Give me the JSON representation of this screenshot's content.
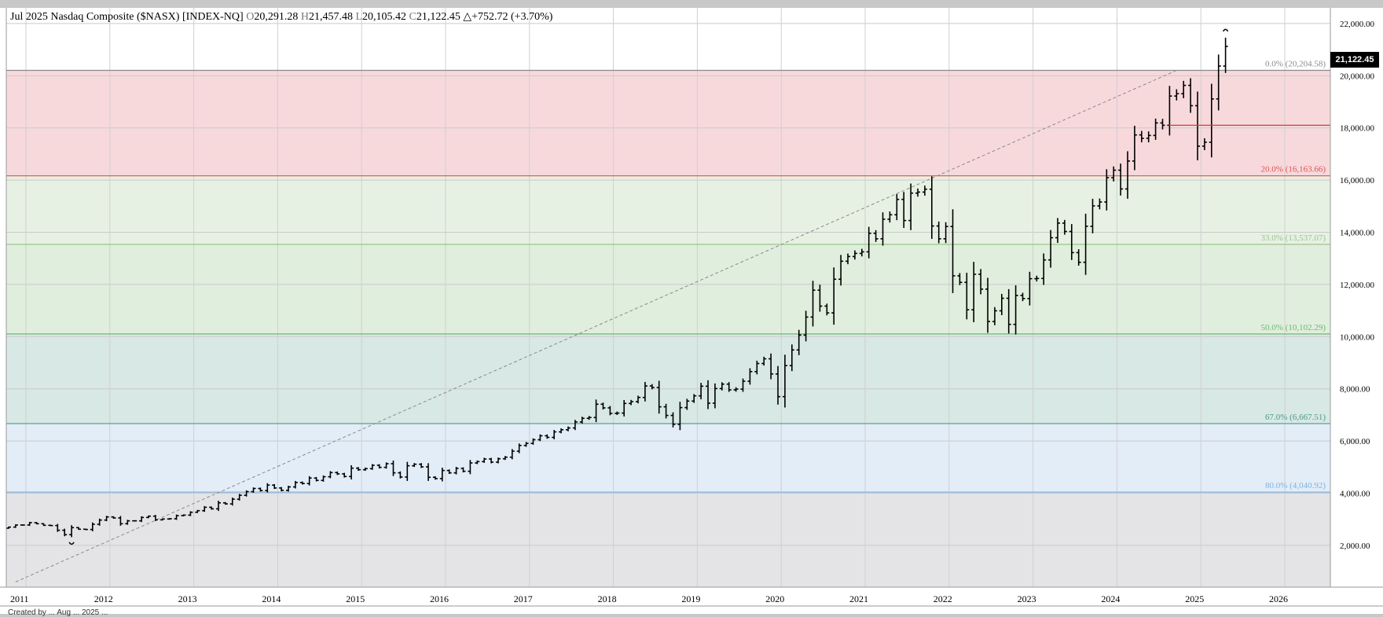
{
  "header": {
    "period": "Jul 2025",
    "name": "Nasdaq Composite ($NASX) [INDEX-NQ]",
    "open_key": "O",
    "open": "20,291.28",
    "high_key": "H",
    "high": "21,457.48",
    "low_key": "L",
    "low": "20,105.42",
    "close_key": "C",
    "close": "21,122.45",
    "change": "△+752.72 (+3.70%)"
  },
  "last_price_tag": "21,122.45",
  "footer": "Created by ... Aug ... 2025 ...",
  "chart_data": {
    "type": "ohlc-bar",
    "xlabel": "",
    "ylabel": "",
    "ylim": [
      400,
      22600
    ],
    "xlim": [
      "2010-12",
      "2026-12"
    ],
    "x_tick_labels": [
      "2011",
      "2012",
      "2013",
      "2014",
      "2015",
      "2016",
      "2017",
      "2018",
      "2019",
      "2020",
      "2021",
      "2022",
      "2023",
      "2024",
      "2025",
      "2026"
    ],
    "y_tick_labels": [
      "2,000.00",
      "4,000.00",
      "6,000.00",
      "8,000.00",
      "10,000.00",
      "12,000.00",
      "14,000.00",
      "16,000.00",
      "18,000.00",
      "20,000.00",
      "22,000.00"
    ],
    "y_tick_values": [
      2000,
      4000,
      6000,
      8000,
      10000,
      12000,
      14000,
      16000,
      18000,
      20000,
      22000
    ],
    "fib_levels": [
      {
        "label": "0.0% (20,204.58)",
        "value": 20204.58,
        "color": "#8a8a8a"
      },
      {
        "label": "20.0% (16,163.66)",
        "value": 16163.66,
        "color": "#e05050"
      },
      {
        "label": "33.0% (13,537.07)",
        "value": 13537.07,
        "color": "#9cc48c"
      },
      {
        "label": "50.0% (10,102.29)",
        "value": 10102.29,
        "color": "#6db86d"
      },
      {
        "label": "67.0% (6,667.51)",
        "value": 6667.51,
        "color": "#4a9a8a"
      },
      {
        "label": "80.0% (4,040.92)",
        "value": 4040.92,
        "color": "#82b2dc"
      }
    ],
    "fib_zones": [
      {
        "from": 20204.58,
        "to": 16163.66,
        "color": "#f7d9dc"
      },
      {
        "from": 16163.66,
        "to": 13537.07,
        "color": "#e6f1e3"
      },
      {
        "from": 13537.07,
        "to": 10102.29,
        "color": "#e0eedd"
      },
      {
        "from": 10102.29,
        "to": 6667.51,
        "color": "#d8e8e4"
      },
      {
        "from": 6667.51,
        "to": 4040.92,
        "color": "#e2edf8"
      },
      {
        "from": 4040.92,
        "to": 400,
        "color": "#e4e4e6"
      }
    ],
    "trend_line": {
      "from": {
        "x": "2011-02",
        "y": 600
      },
      "to": {
        "x": "2024-12",
        "y": 20204.58
      }
    },
    "red_line": {
      "x_from": "2024-10",
      "x_to": "2026-12",
      "y": 18100
    },
    "closes": [
      2700,
      2780,
      2780,
      2870,
      2830,
      2770,
      2760,
      2580,
      2410,
      2680,
      2620,
      2610,
      2810,
      2970,
      3090,
      3050,
      2830,
      2940,
      2940,
      3070,
      3120,
      2980,
      3010,
      3020,
      3140,
      3160,
      3270,
      3330,
      3460,
      3400,
      3630,
      3590,
      3770,
      3920,
      4060,
      4180,
      4100,
      4310,
      4200,
      4110,
      4240,
      4410,
      4370,
      4580,
      4490,
      4630,
      4790,
      4740,
      4640,
      4960,
      4900,
      4940,
      5070,
      4990,
      5130,
      4780,
      4620,
      5050,
      5110,
      5010,
      4610,
      4560,
      4870,
      4780,
      4950,
      4840,
      5160,
      5210,
      5310,
      5190,
      5320,
      5380,
      5610,
      5830,
      5910,
      6050,
      6200,
      6140,
      6350,
      6430,
      6500,
      6730,
      6870,
      6900,
      7410,
      7270,
      7060,
      7070,
      7440,
      7510,
      7670,
      8110,
      8050,
      7310,
      6980,
      6640,
      7280,
      7530,
      7730,
      8100,
      7450,
      8010,
      8180,
      7960,
      7990,
      8290,
      8660,
      8970,
      9150,
      8570,
      7700,
      8890,
      9490,
      10060,
      10750,
      11780,
      11170,
      10910,
      12200,
      12890,
      13070,
      13190,
      13250,
      13960,
      13750,
      14500,
      14670,
      15260,
      14450,
      15500,
      15540,
      15650,
      14240,
      13750,
      14220,
      12330,
      12080,
      11030,
      12390,
      11820,
      10580,
      10990,
      11470,
      10470,
      11580,
      11460,
      12220,
      12230,
      12940,
      13790,
      14350,
      14030,
      13220,
      12850,
      14230,
      15010,
      15160,
      16090,
      16380,
      15660,
      16730,
      17730,
      17600,
      17710,
      18190,
      18100,
      19220,
      19310,
      19630,
      18850,
      17300,
      17450,
      19110,
      20370,
      21122
    ]
  }
}
